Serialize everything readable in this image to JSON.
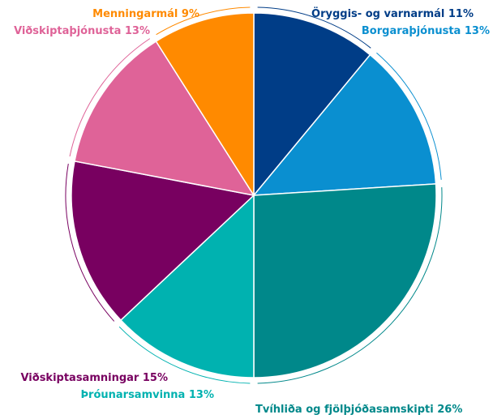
{
  "chart_data": {
    "type": "pie",
    "categories": [
      "Öryggis- og varnarmál",
      "Borgaraþjónusta",
      "Tvíhliða og fjölþjóðasamskipti",
      "Þróunarsamvinna",
      "Viðskiptasamningar",
      "Viðskiptaþjónusta",
      "Menningarmál"
    ],
    "values": [
      11,
      13,
      26,
      13,
      15,
      13,
      9
    ],
    "value_labels": [
      "11%",
      "13%",
      "26%",
      "13%",
      "15%",
      "13%",
      "9%"
    ],
    "colors": [
      "#003d87",
      "#0a8fd0",
      "#00888a",
      "#00b2b0",
      "#780060",
      "#df6398",
      "#ff8a00"
    ]
  }
}
